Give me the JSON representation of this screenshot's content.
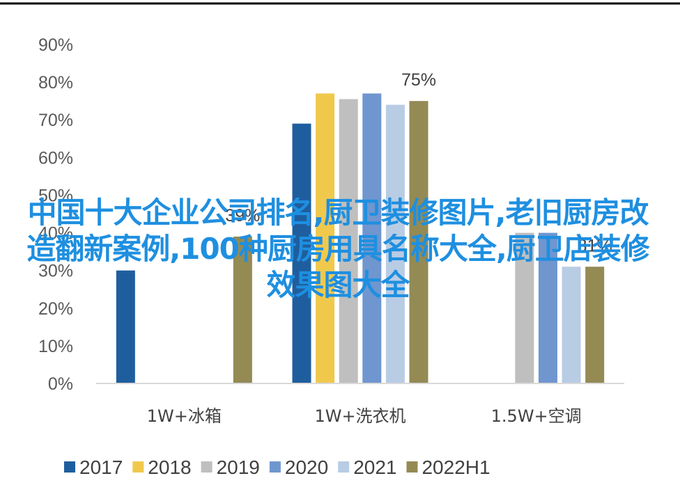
{
  "chart_data": {
    "type": "bar",
    "categories": [
      "1W+冰箱",
      "1W+洗衣机",
      "1.5W+空调"
    ],
    "series": [
      {
        "name": "2017",
        "color": "#1f5e9e",
        "values": [
          30,
          69,
          null
        ]
      },
      {
        "name": "2018",
        "color": "#f0c94c",
        "values": [
          null,
          77,
          null
        ]
      },
      {
        "name": "2019",
        "color": "#bfbfbf",
        "values": [
          null,
          75.5,
          40
        ]
      },
      {
        "name": "2020",
        "color": "#6f96cf",
        "values": [
          null,
          77,
          40
        ]
      },
      {
        "name": "2021",
        "color": "#b8cce4",
        "values": [
          null,
          74,
          31
        ]
      },
      {
        "name": "2022H1",
        "color": "#948a54",
        "values": [
          39,
          75,
          31
        ]
      }
    ],
    "data_labels": [
      {
        "series": "2022H1",
        "category": "1W+洗衣机",
        "text": "75%"
      },
      {
        "series": "2022H1",
        "category": "1W+冰箱",
        "text": "39%"
      },
      {
        "series": "2022H1",
        "category": "1.5W+空调",
        "text": "31%"
      }
    ],
    "y_ticks": [
      "0%",
      "10%",
      "20%",
      "30%",
      "40%",
      "50%",
      "60%",
      "70%",
      "80%",
      "90%"
    ],
    "ylim": [
      0,
      90
    ],
    "grid": false,
    "legend": "bottom"
  },
  "overlay_text": "中国十大企业公司排名,厨卫装修图片,老旧厨房改造翻新案例,100种厨房用具名称大全,厨卫店装修效果图大全"
}
